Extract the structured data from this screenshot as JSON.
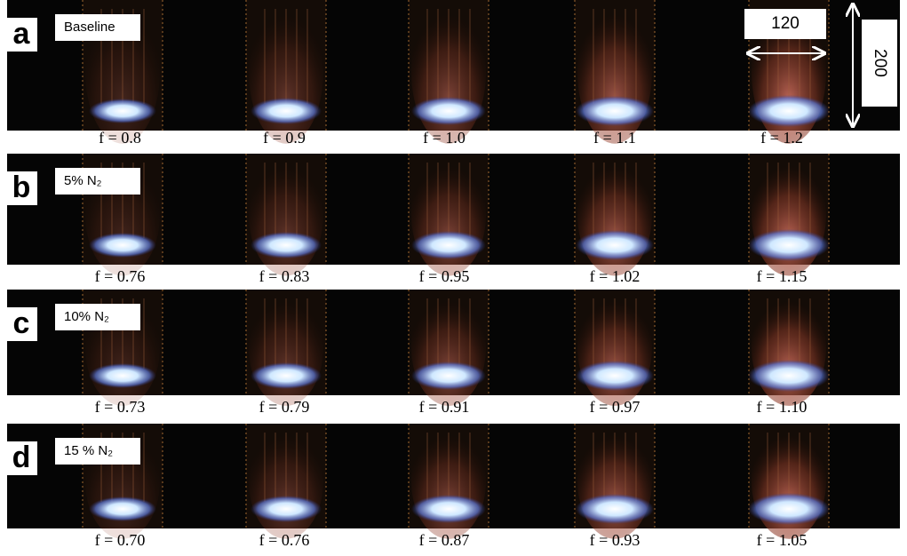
{
  "panels": [
    {
      "letter": "a",
      "label": "Baseline",
      "captions": [
        "f = 0.8",
        "f = 0.9",
        "f = 1.0",
        "f = 1.1",
        "f = 1.2"
      ]
    },
    {
      "letter": "b",
      "label": "5% N₂",
      "captions": [
        "f = 0.76",
        "f = 0.83",
        "f = 0.95",
        "f = 1.02",
        "f = 1.15"
      ]
    },
    {
      "letter": "c",
      "label": "10% N₂",
      "captions": [
        "f = 0.73",
        "f = 0.79",
        "f = 0.91",
        "f = 0.97",
        "f = 1.10"
      ]
    },
    {
      "letter": "d",
      "label": "15 % N₂",
      "captions": [
        "f = 0.70",
        "f = 0.76",
        "f = 0.87",
        "f = 0.93",
        "f = 1.05"
      ]
    }
  ],
  "scale": {
    "width": "120",
    "height": "200"
  }
}
